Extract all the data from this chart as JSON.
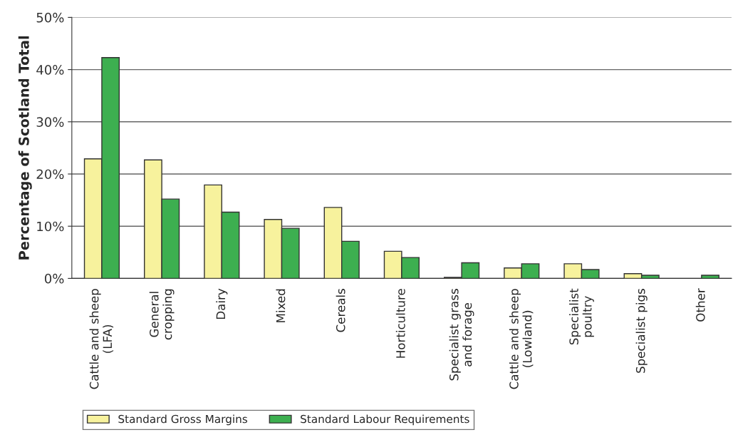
{
  "chart_data": {
    "type": "bar",
    "ylabel": "Percentage of Scotland Total",
    "categories": [
      "Cattle and sheep\n(LFA)",
      "General\ncropping",
      "Dairy",
      "Mixed",
      "Cereals",
      "Horticulture",
      "Specialist grass\nand forage",
      "Cattle and sheep\n(Lowland)",
      "Specialist\npoultry",
      "Specialist pigs",
      "Other"
    ],
    "series": [
      {
        "name": "Standard Gross Margins",
        "color": "#f7f29d",
        "values": [
          22.9,
          22.7,
          17.9,
          11.3,
          13.6,
          5.2,
          0.2,
          2.0,
          2.8,
          0.9,
          null
        ]
      },
      {
        "name": "Standard Labour Requirements",
        "color": "#3daf50",
        "values": [
          42.3,
          15.2,
          12.7,
          9.6,
          7.1,
          4.0,
          3.0,
          2.8,
          1.7,
          0.6,
          0.6
        ]
      }
    ],
    "ylim": [
      0,
      50
    ],
    "yticks": [
      {
        "value": 0,
        "label": "0%"
      },
      {
        "value": 10,
        "label": "10%"
      },
      {
        "value": 20,
        "label": "20%"
      },
      {
        "value": 30,
        "label": "30%"
      },
      {
        "value": 40,
        "label": "40%"
      },
      {
        "value": 50,
        "label": "50%"
      }
    ],
    "grid": "y",
    "legend": "bottom"
  }
}
